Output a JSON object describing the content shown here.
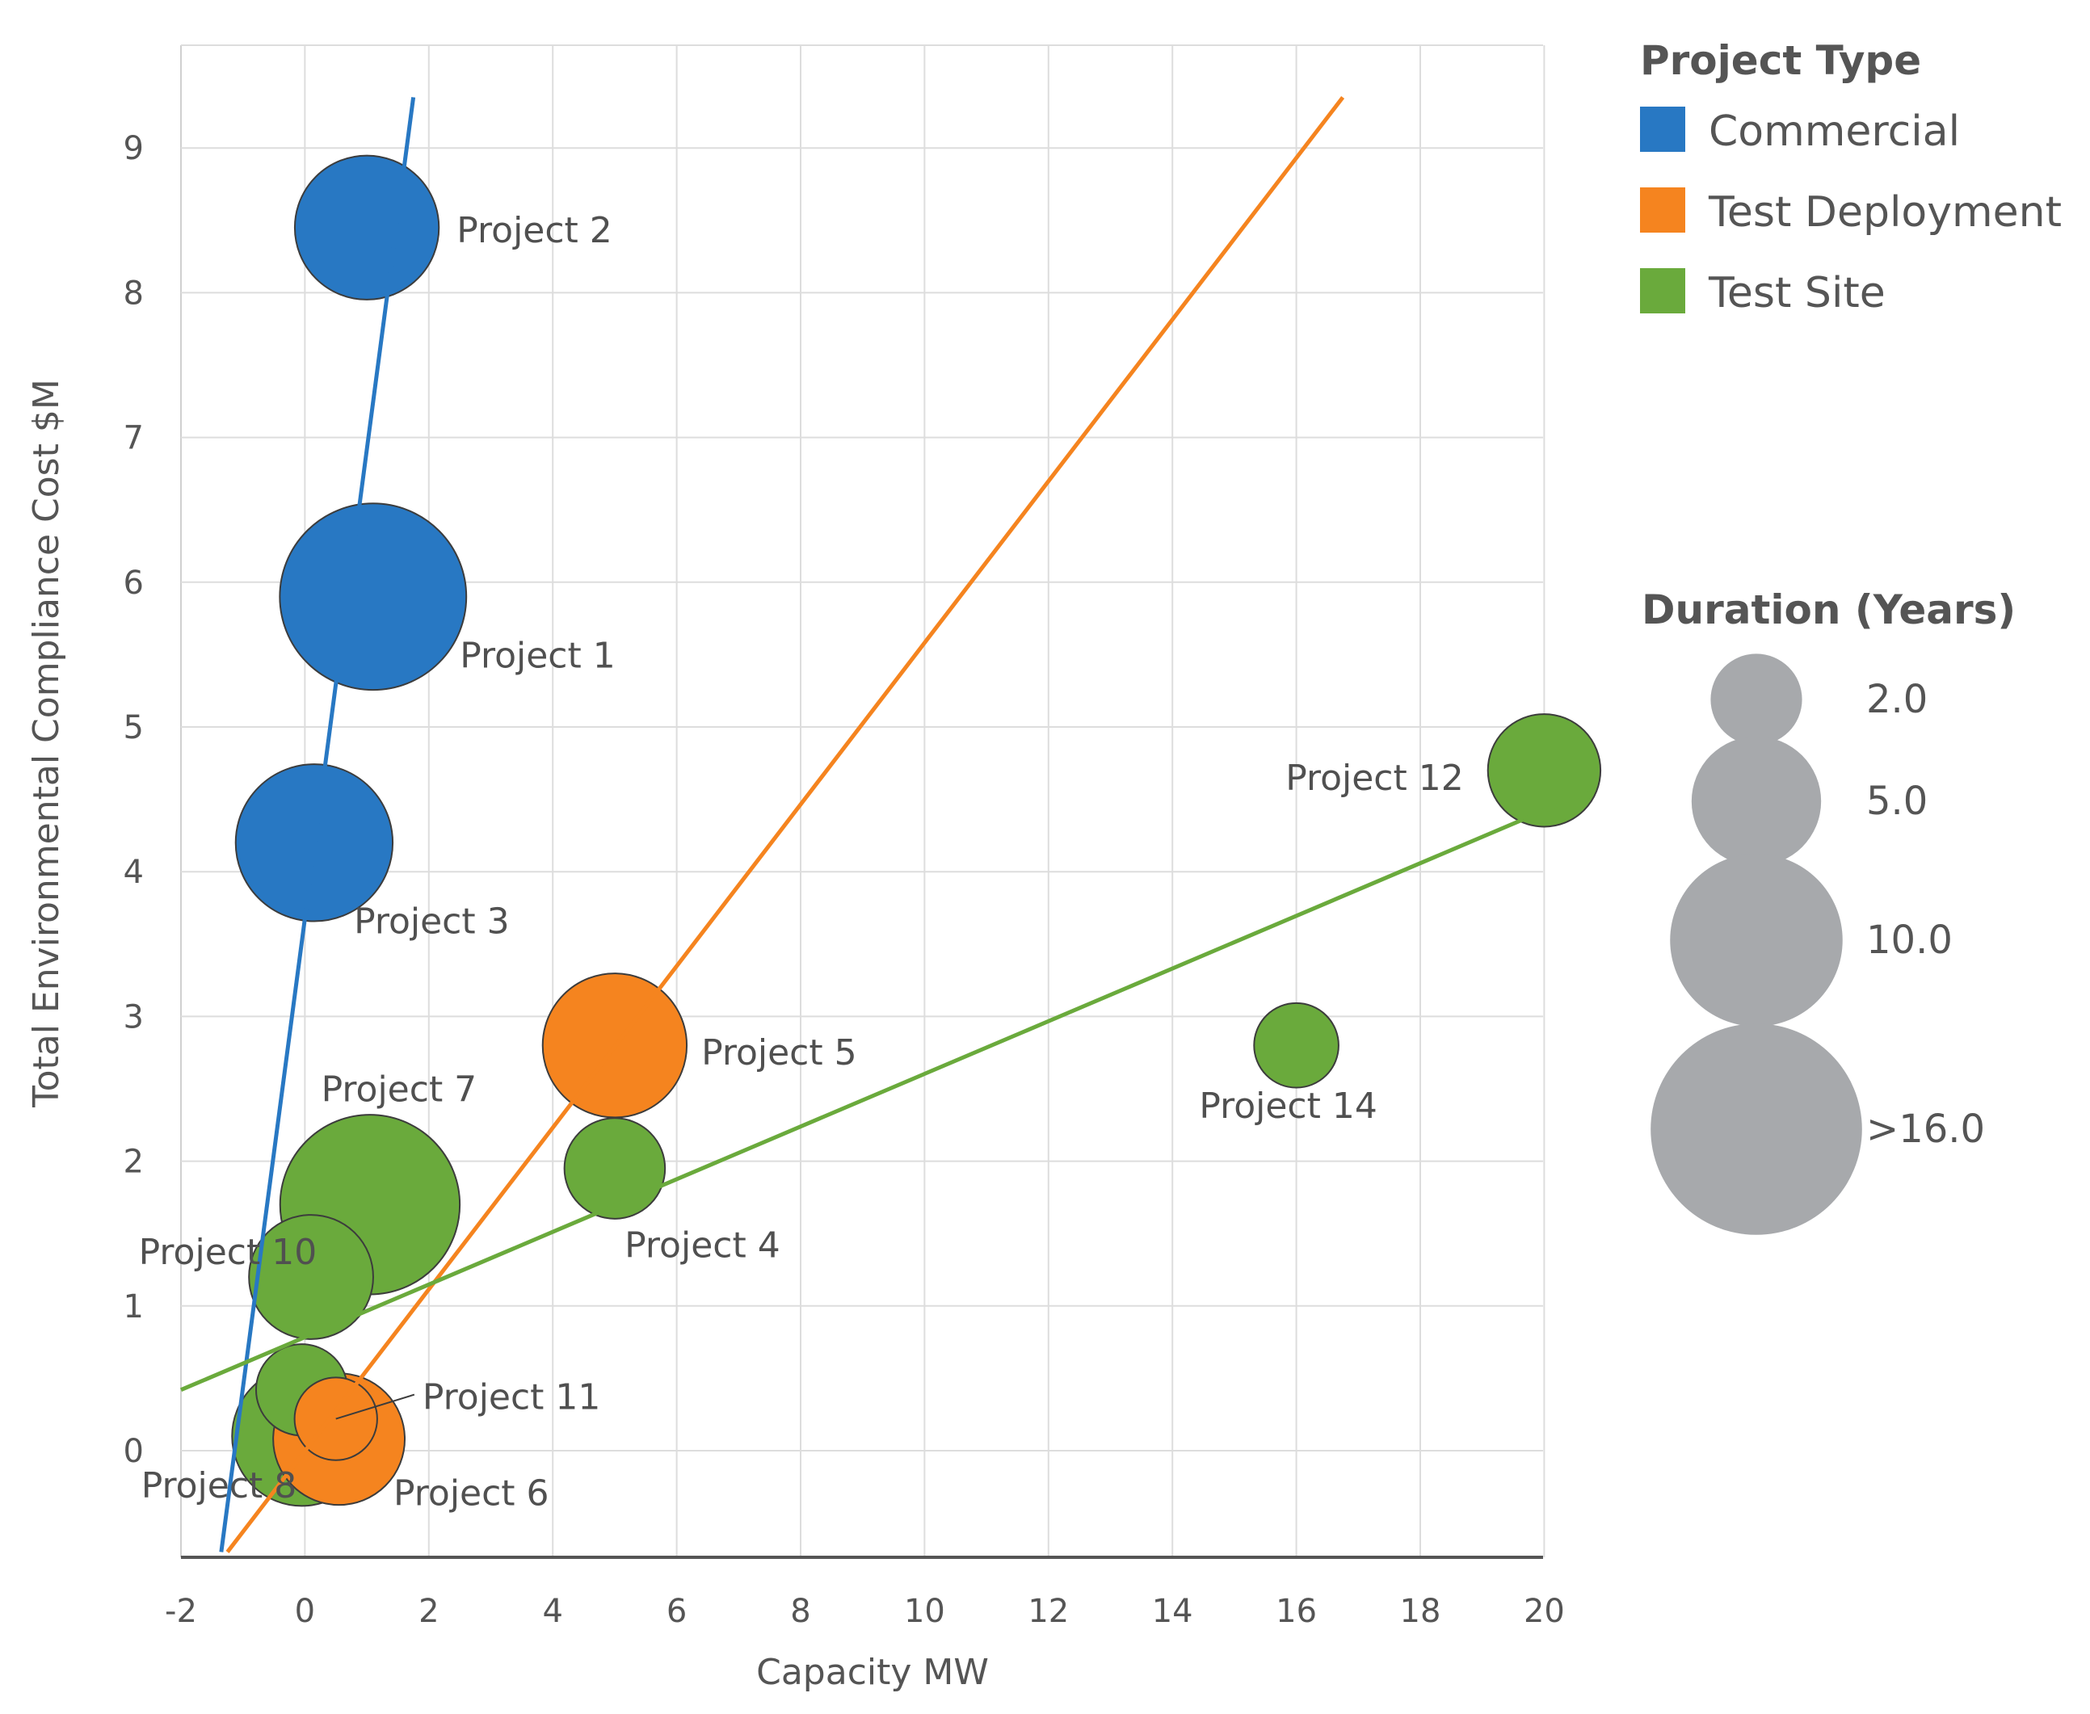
{
  "chart_data": {
    "type": "scatter",
    "subtype": "bubble",
    "xlabel": "Capacity MW",
    "ylabel": "Total Environmental Compliance Cost $M",
    "xlim": [
      -2,
      20
    ],
    "ylim": [
      -0.7,
      9.7
    ],
    "x_ticks": [
      "-2",
      "0",
      "2",
      "4",
      "6",
      "8",
      "10",
      "12",
      "14",
      "16",
      "18",
      "20"
    ],
    "y_ticks": [
      "0",
      "1",
      "2",
      "3",
      "4",
      "5",
      "6",
      "7",
      "8",
      "9"
    ],
    "grid": true,
    "colors": {
      "Commercial": "#2878c3",
      "Test Deployment": "#f5841f",
      "Test Site": "#6aaa3c",
      "size_legend": "#a7a9ac"
    },
    "series": [
      {
        "name": "Commercial",
        "points": [
          {
            "label": "Project 2",
            "x": 1.0,
            "y": 8.45,
            "duration": 6.5
          },
          {
            "label": "Project 1",
            "x": 1.1,
            "y": 5.9,
            "duration": 12.0
          },
          {
            "label": "Project 3",
            "x": 0.15,
            "y": 4.2,
            "duration": 8.0
          }
        ]
      },
      {
        "name": "Test Deployment",
        "points": [
          {
            "label": "Project 5",
            "x": 5.0,
            "y": 2.8,
            "duration": 6.5
          },
          {
            "label": "Project 6",
            "x": 0.55,
            "y": 0.08,
            "duration": 5.2
          },
          {
            "label": "Project 11",
            "x": 0.5,
            "y": 0.22,
            "duration": 1.5
          }
        ]
      },
      {
        "name": "Test Site",
        "points": [
          {
            "label": "Project 12",
            "x": 20.0,
            "y": 4.7,
            "duration": 3.5
          },
          {
            "label": "Project 14",
            "x": 16.0,
            "y": 2.8,
            "duration": 1.6
          },
          {
            "label": "Project 4",
            "x": 5.0,
            "y": 1.95,
            "duration": 2.6
          },
          {
            "label": "Project 7",
            "x": 1.05,
            "y": 1.7,
            "duration": 11.0
          },
          {
            "label": "Project 10",
            "x": 0.1,
            "y": 1.2,
            "duration": 4.5
          },
          {
            "label": "",
            "x": -0.05,
            "y": 0.42,
            "duration": 2.0
          },
          {
            "label": "Project 8",
            "x": -0.05,
            "y": 0.1,
            "duration": 6.0
          }
        ]
      }
    ],
    "trendlines": [
      {
        "series": "Commercial",
        "from": [
          -1.35,
          -0.7
        ],
        "to": [
          1.75,
          9.35
        ]
      },
      {
        "series": "Test Deployment",
        "from": [
          -1.25,
          -0.7
        ],
        "to": [
          16.75,
          9.35
        ]
      },
      {
        "series": "Test Site",
        "from": [
          -2.0,
          0.42
        ],
        "to": [
          20.7,
          4.55
        ]
      }
    ],
    "legend": {
      "title": "Project Type",
      "entries": [
        "Commercial",
        "Test Deployment",
        "Test Site"
      ],
      "placement": "top-right"
    },
    "size_legend": {
      "title": "Duration (Years)",
      "entries": [
        {
          "label": "2.0",
          "value": 2.0
        },
        {
          "label": "5.0",
          "value": 5.0
        },
        {
          "label": "10.0",
          "value": 10.0
        },
        {
          "label": ">16.0",
          "value": 16.0
        }
      ],
      "placement": "right"
    }
  }
}
